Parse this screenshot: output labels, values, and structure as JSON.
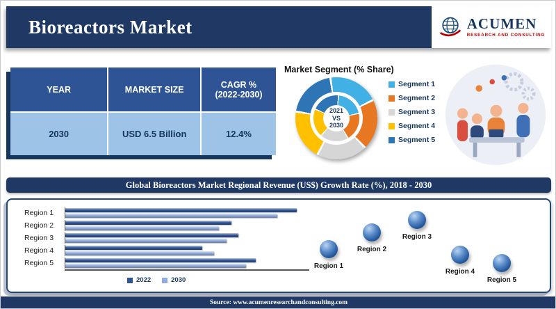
{
  "header": {
    "title": "Bioreactors Market",
    "logo": {
      "name": "ACUMEN",
      "subtitle": "RESEARCH AND CONSULTING"
    }
  },
  "summary_table": {
    "headers": [
      "YEAR",
      "MARKET SIZE",
      "CAGR %\n(2022-2030)"
    ],
    "row": {
      "year": "2030",
      "market_size": "USD 6.5 Billion",
      "cagr": "12.4%"
    }
  },
  "segment_section": {
    "title": "Market Segment (% Share)"
  },
  "regional_band_title": "Global Bioreactors Market Regional Revenue (US$) Growth Rate (%), 2018 - 2030",
  "footer": {
    "source": "Source: www.acumenresearchandconsulting.com"
  },
  "colors": {
    "primary_navy": "#1f3864",
    "accent_red": "#c00000",
    "table_header_blue": "#2f5496",
    "table_row_blue": "#9dc3e6"
  },
  "chart_data": [
    {
      "type": "pie",
      "subtype": "donut",
      "title": "Market Segment (% Share)",
      "center_label": [
        "2021",
        "VS",
        "2030"
      ],
      "labels": [
        "Segment 1",
        "Segment 2",
        "Segment 3",
        "Segment 4",
        "Segment 5"
      ],
      "values": [
        20,
        20,
        20,
        20,
        20
      ],
      "colors": [
        "#41b0e4",
        "#e87722",
        "#d6d6d6",
        "#ffc000",
        "#2e75b6"
      ],
      "legend_position": "right"
    },
    {
      "type": "bar",
      "orientation": "horizontal",
      "title": "Global Bioreactors Market Regional Revenue (US$) Growth Rate (%), 2018 - 2030",
      "categories": [
        "Region 1",
        "Region 2",
        "Region 3",
        "Region 4",
        "Region 5"
      ],
      "series": [
        {
          "name": "2022",
          "color": "#2f5496",
          "values": [
            95,
            68,
            71,
            56,
            78
          ]
        },
        {
          "name": "2030",
          "color": "#8faadc",
          "values": [
            87,
            63,
            66,
            61,
            74
          ]
        }
      ],
      "xlim": [
        0,
        100
      ],
      "grid": false,
      "legend_position": "bottom"
    }
  ]
}
